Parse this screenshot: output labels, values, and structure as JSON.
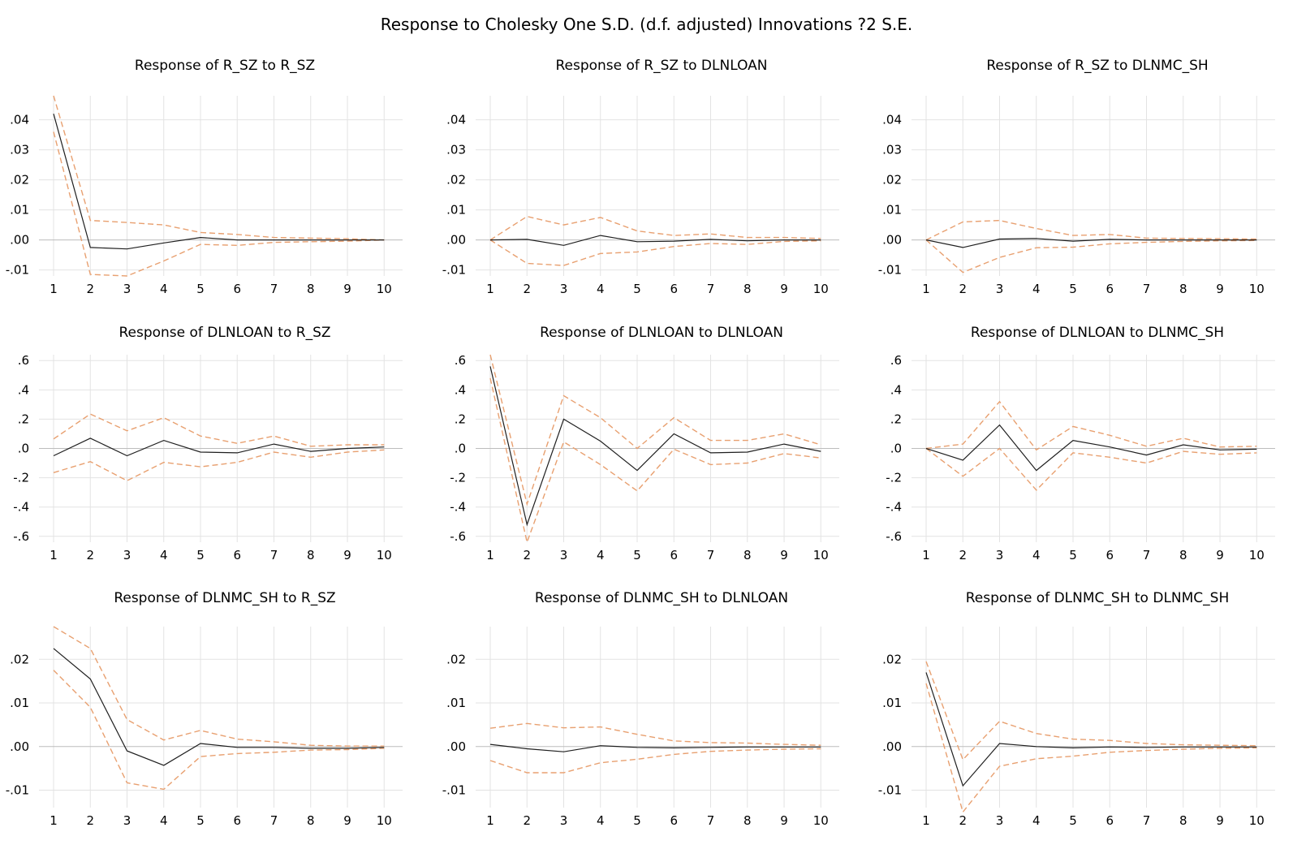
{
  "title": "Response to Cholesky One S.D. (d.f. adjusted) Innovations ?2 S.E.",
  "colors": {
    "response": "#1f1f1f",
    "bands": "#e8a070",
    "grid": "#e3e3e3",
    "zero": "#bdbdbd"
  },
  "chart_data": [
    {
      "type": "line",
      "title": "Response of R_SZ to R_SZ",
      "x": [
        1,
        2,
        3,
        4,
        5,
        6,
        7,
        8,
        9,
        10
      ],
      "ylim": [
        -0.012,
        0.048
      ],
      "yticks": [
        ".04",
        ".03",
        ".02",
        ".01",
        ".00",
        "-.01"
      ],
      "ytick_values": [
        0.04,
        0.03,
        0.02,
        0.01,
        0,
        -0.01
      ],
      "series": [
        {
          "role": "response",
          "values": [
            0.042,
            -0.0025,
            -0.003,
            -0.001,
            0.0008,
            0.0,
            0.0,
            0.0,
            0.0,
            0.0
          ]
        },
        {
          "role": "upper",
          "values": [
            0.048,
            0.0065,
            0.0058,
            0.005,
            0.0025,
            0.0018,
            0.0008,
            0.0006,
            0.0004,
            0.0
          ]
        },
        {
          "role": "lower",
          "values": [
            0.036,
            -0.0115,
            -0.012,
            -0.007,
            -0.0015,
            -0.0018,
            -0.0008,
            -0.0006,
            -0.0004,
            0.0
          ]
        }
      ]
    },
    {
      "type": "line",
      "title": "Response of R_SZ to DLNLOAN",
      "x": [
        1,
        2,
        3,
        4,
        5,
        6,
        7,
        8,
        9,
        10
      ],
      "ylim": [
        -0.012,
        0.048
      ],
      "yticks": [
        ".04",
        ".03",
        ".02",
        ".01",
        ".00",
        "-.01"
      ],
      "ytick_values": [
        0.04,
        0.03,
        0.02,
        0.01,
        0,
        -0.01
      ],
      "series": [
        {
          "role": "response",
          "values": [
            0.0,
            0.0002,
            -0.0018,
            0.0015,
            -0.0006,
            -0.0004,
            0.0002,
            -0.0003,
            0.0,
            0.0
          ]
        },
        {
          "role": "upper",
          "values": [
            0.0,
            0.0078,
            0.005,
            0.0075,
            0.003,
            0.0015,
            0.002,
            0.0008,
            0.0008,
            0.0005
          ]
        },
        {
          "role": "lower",
          "values": [
            0.0,
            -0.0078,
            -0.0085,
            -0.0045,
            -0.004,
            -0.0022,
            -0.0012,
            -0.0015,
            -0.0005,
            -0.0003
          ]
        }
      ]
    },
    {
      "type": "line",
      "title": "Response of R_SZ to DLNMC_SH",
      "x": [
        1,
        2,
        3,
        4,
        5,
        6,
        7,
        8,
        9,
        10
      ],
      "ylim": [
        -0.012,
        0.048
      ],
      "yticks": [
        ".04",
        ".03",
        ".02",
        ".01",
        ".00",
        "-.01"
      ],
      "ytick_values": [
        0.04,
        0.03,
        0.02,
        0.01,
        0,
        -0.01
      ],
      "series": [
        {
          "role": "response",
          "values": [
            0.0,
            -0.0025,
            0.0003,
            0.0005,
            -0.0004,
            0.0002,
            0.0,
            0.0,
            0.0,
            0.0
          ]
        },
        {
          "role": "upper",
          "values": [
            0.0,
            0.006,
            0.0065,
            0.0038,
            0.0015,
            0.0018,
            0.0006,
            0.0005,
            0.0004,
            0.0003
          ]
        },
        {
          "role": "lower",
          "values": [
            0.0,
            -0.0108,
            -0.0058,
            -0.0026,
            -0.0024,
            -0.0013,
            -0.0008,
            -0.0005,
            -0.0003,
            -0.0002
          ]
        }
      ]
    },
    {
      "type": "line",
      "title": "Response of DLNLOAN to R_SZ",
      "x": [
        1,
        2,
        3,
        4,
        5,
        6,
        7,
        8,
        9,
        10
      ],
      "ylim": [
        -0.64,
        0.64
      ],
      "yticks": [
        ".6",
        ".4",
        ".2",
        ".0",
        "-.2",
        "-.4",
        "-.6"
      ],
      "ytick_values": [
        0.6,
        0.4,
        0.2,
        0,
        -0.2,
        -0.4,
        -0.6
      ],
      "series": [
        {
          "role": "response",
          "values": [
            -0.05,
            0.07,
            -0.05,
            0.055,
            -0.025,
            -0.03,
            0.03,
            -0.02,
            0.0,
            0.01
          ]
        },
        {
          "role": "upper",
          "values": [
            0.065,
            0.235,
            0.12,
            0.21,
            0.085,
            0.035,
            0.085,
            0.015,
            0.025,
            0.025
          ]
        },
        {
          "role": "lower",
          "values": [
            -0.165,
            -0.09,
            -0.22,
            -0.095,
            -0.125,
            -0.095,
            -0.025,
            -0.06,
            -0.025,
            -0.01
          ]
        }
      ]
    },
    {
      "type": "line",
      "title": "Response of DLNLOAN to DLNLOAN",
      "x": [
        1,
        2,
        3,
        4,
        5,
        6,
        7,
        8,
        9,
        10
      ],
      "ylim": [
        -0.64,
        0.64
      ],
      "yticks": [
        ".6",
        ".4",
        ".2",
        ".0",
        "-.2",
        "-.4",
        "-.6"
      ],
      "ytick_values": [
        0.6,
        0.4,
        0.2,
        0,
        -0.2,
        -0.4,
        -0.6
      ],
      "series": [
        {
          "role": "response",
          "values": [
            0.56,
            -0.52,
            0.2,
            0.05,
            -0.15,
            0.1,
            -0.03,
            -0.025,
            0.03,
            -0.02
          ]
        },
        {
          "role": "upper",
          "values": [
            0.64,
            -0.38,
            0.36,
            0.21,
            0.0,
            0.21,
            0.055,
            0.055,
            0.1,
            0.025
          ]
        },
        {
          "role": "lower",
          "values": [
            0.48,
            -0.64,
            0.045,
            -0.11,
            -0.29,
            -0.005,
            -0.11,
            -0.1,
            -0.035,
            -0.065
          ]
        }
      ]
    },
    {
      "type": "line",
      "title": "Response of DLNLOAN to DLNMC_SH",
      "x": [
        1,
        2,
        3,
        4,
        5,
        6,
        7,
        8,
        9,
        10
      ],
      "ylim": [
        -0.64,
        0.64
      ],
      "yticks": [
        ".6",
        ".4",
        ".2",
        ".0",
        "-.2",
        "-.4",
        "-.6"
      ],
      "ytick_values": [
        0.6,
        0.4,
        0.2,
        0,
        -0.2,
        -0.4,
        -0.6
      ],
      "series": [
        {
          "role": "response",
          "values": [
            0.0,
            -0.08,
            0.16,
            -0.15,
            0.055,
            0.01,
            -0.045,
            0.025,
            -0.01,
            -0.005
          ]
        },
        {
          "role": "upper",
          "values": [
            0.0,
            0.03,
            0.32,
            -0.01,
            0.15,
            0.09,
            0.015,
            0.07,
            0.01,
            0.015
          ]
        },
        {
          "role": "lower",
          "values": [
            0.0,
            -0.19,
            0.0,
            -0.285,
            -0.03,
            -0.06,
            -0.1,
            -0.02,
            -0.04,
            -0.03
          ]
        }
      ]
    },
    {
      "type": "line",
      "title": "Response of DLNMC_SH to R_SZ",
      "x": [
        1,
        2,
        3,
        4,
        5,
        6,
        7,
        8,
        9,
        10
      ],
      "ylim": [
        -0.014,
        0.0275
      ],
      "yticks": [
        ".02",
        ".01",
        ".00",
        "-.01"
      ],
      "ytick_values": [
        0.02,
        0.01,
        0,
        -0.01
      ],
      "series": [
        {
          "role": "response",
          "values": [
            0.0225,
            0.0155,
            -0.001,
            -0.0043,
            0.0007,
            -0.0002,
            -0.0002,
            -0.0004,
            -0.0004,
            -0.0002
          ]
        },
        {
          "role": "upper",
          "values": [
            0.0275,
            0.0225,
            0.0062,
            0.0015,
            0.0037,
            0.0017,
            0.0011,
            0.0003,
            0.0001,
            0.0001
          ]
        },
        {
          "role": "lower",
          "values": [
            0.0175,
            0.009,
            -0.0083,
            -0.0098,
            -0.0023,
            -0.0016,
            -0.0013,
            -0.0008,
            -0.0007,
            -0.0004
          ]
        }
      ]
    },
    {
      "type": "line",
      "title": "Response of DLNMC_SH to DLNLOAN",
      "x": [
        1,
        2,
        3,
        4,
        5,
        6,
        7,
        8,
        9,
        10
      ],
      "ylim": [
        -0.014,
        0.0275
      ],
      "yticks": [
        ".02",
        ".01",
        ".00",
        "-.01"
      ],
      "ytick_values": [
        0.02,
        0.01,
        0,
        -0.01
      ],
      "series": [
        {
          "role": "response",
          "values": [
            0.0005,
            -0.0005,
            -0.0012,
            0.0002,
            -0.0002,
            -0.0003,
            -0.0002,
            -0.0001,
            -0.0001,
            -0.0001
          ]
        },
        {
          "role": "upper",
          "values": [
            0.0042,
            0.0053,
            0.0043,
            0.0045,
            0.0028,
            0.0013,
            0.0009,
            0.0008,
            0.0005,
            0.0003
          ]
        },
        {
          "role": "lower",
          "values": [
            -0.0032,
            -0.006,
            -0.006,
            -0.0037,
            -0.0029,
            -0.0018,
            -0.0011,
            -0.0008,
            -0.0006,
            -0.0005
          ]
        }
      ]
    },
    {
      "type": "line",
      "title": "Response of DLNMC_SH to DLNMC_SH",
      "x": [
        1,
        2,
        3,
        4,
        5,
        6,
        7,
        8,
        9,
        10
      ],
      "ylim": [
        -0.014,
        0.0275
      ],
      "yticks": [
        ".02",
        ".01",
        ".00",
        "-.01"
      ],
      "ytick_values": [
        0.02,
        0.01,
        0,
        -0.01
      ],
      "series": [
        {
          "role": "response",
          "values": [
            0.017,
            -0.009,
            0.0007,
            0.0,
            -0.0003,
            -0.0001,
            -0.0002,
            -0.0001,
            -0.0001,
            -0.0001
          ]
        },
        {
          "role": "upper",
          "values": [
            0.0195,
            -0.003,
            0.0058,
            0.003,
            0.0017,
            0.0014,
            0.0007,
            0.0004,
            0.0003,
            0.0002
          ]
        },
        {
          "role": "lower",
          "values": [
            0.0145,
            -0.015,
            -0.0045,
            -0.0028,
            -0.0022,
            -0.0013,
            -0.0009,
            -0.0006,
            -0.0004,
            -0.0003
          ]
        }
      ]
    }
  ]
}
